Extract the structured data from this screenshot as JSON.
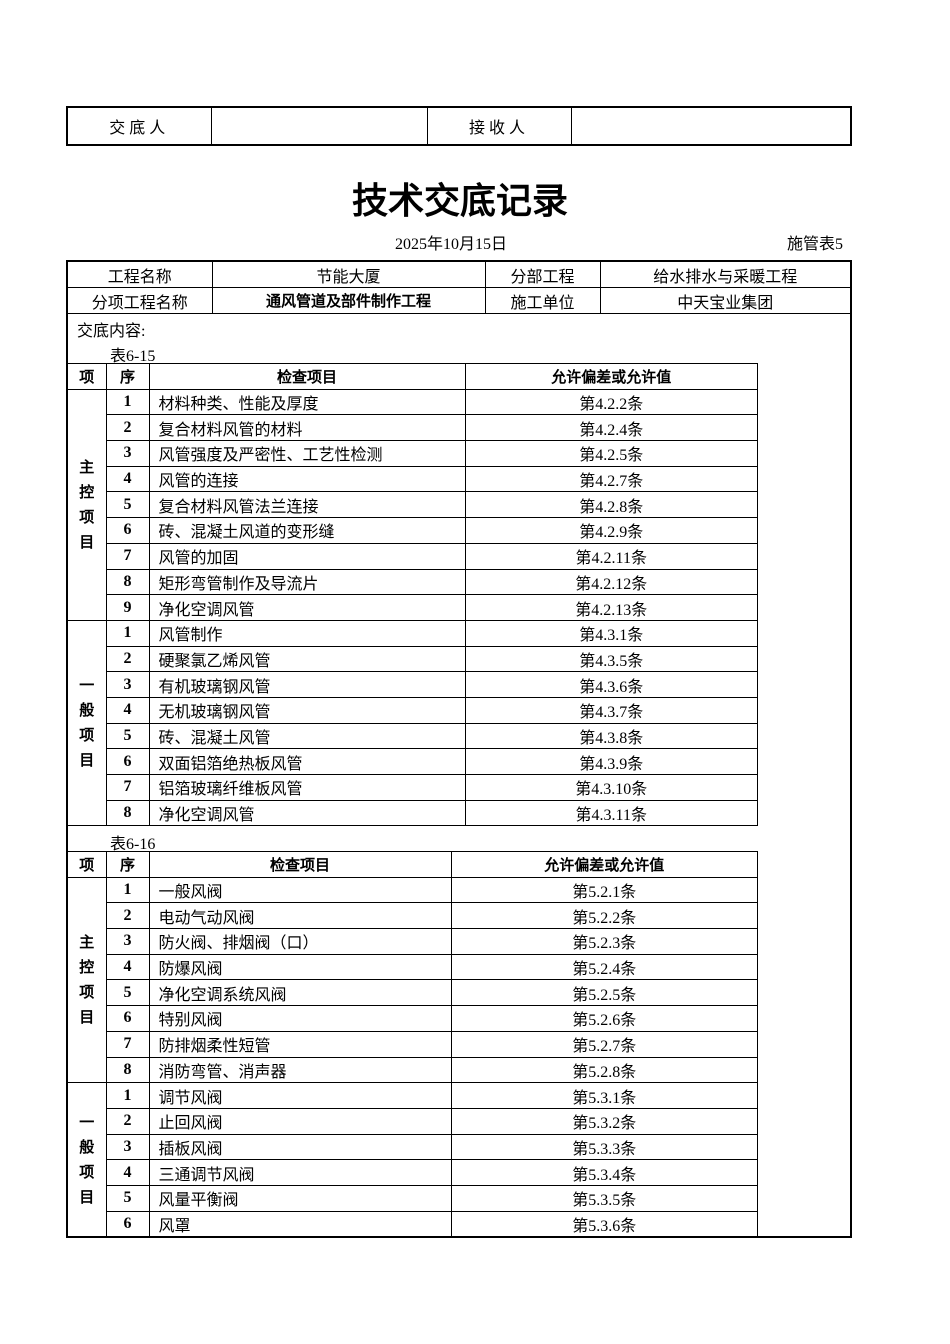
{
  "signoff": {
    "discloser_label": "交底人",
    "discloser_value": "",
    "receiver_label": "接收人",
    "receiver_value": ""
  },
  "title": "技术交底记录",
  "date": "2025年10月15日",
  "form_no": "施管表5",
  "info": {
    "project_name_label": "工程名称",
    "project_name": "节能大厦",
    "division_label": "分部工程",
    "division": "给水排水与采暖工程",
    "subitem_label": "分项工程名称",
    "subitem": "通风管道及部件制作工程",
    "contractor_label": "施工单位",
    "contractor": "中天宝业集团"
  },
  "content_label": "交底内容:",
  "tables": [
    {
      "caption": "表6-15",
      "headers": [
        "项",
        "序",
        "检查项目",
        "允许偏差或允许值"
      ],
      "groups": [
        {
          "name": "主控项目",
          "rows": [
            [
              "1",
              "材料种类、性能及厚度",
              "第4.2.2条"
            ],
            [
              "2",
              "复合材料风管的材料",
              "第4.2.4条"
            ],
            [
              "3",
              "风管强度及严密性、工艺性检测",
              "第4.2.5条"
            ],
            [
              "4",
              "风管的连接",
              "第4.2.7条"
            ],
            [
              "5",
              "复合材料风管法兰连接",
              "第4.2.8条"
            ],
            [
              "6",
              "砖、混凝土风道的变形缝",
              "第4.2.9条"
            ],
            [
              "7",
              "风管的加固",
              "第4.2.11条"
            ],
            [
              "8",
              "矩形弯管制作及导流片",
              "第4.2.12条"
            ],
            [
              "9",
              "净化空调风管",
              "第4.2.13条"
            ]
          ]
        },
        {
          "name": "一般项目",
          "rows": [
            [
              "1",
              "风管制作",
              "第4.3.1条"
            ],
            [
              "2",
              "硬聚氯乙烯风管",
              "第4.3.5条"
            ],
            [
              "3",
              "有机玻璃钢风管",
              "第4.3.6条"
            ],
            [
              "4",
              "无机玻璃钢风管",
              "第4.3.7条"
            ],
            [
              "5",
              "砖、混凝土风管",
              "第4.3.8条"
            ],
            [
              "6",
              "双面铝箔绝热板风管",
              "第4.3.9条"
            ],
            [
              "7",
              "铝箔玻璃纤维板风管",
              "第4.3.10条"
            ],
            [
              "8",
              "净化空调风管",
              "第4.3.11条"
            ]
          ]
        }
      ]
    },
    {
      "caption": "表6-16",
      "headers": [
        "项",
        "序",
        "检查项目",
        "允许偏差或允许值"
      ],
      "groups": [
        {
          "name": "主控项目",
          "rows": [
            [
              "1",
              "一般风阀",
              "第5.2.1条"
            ],
            [
              "2",
              "电动气动风阀",
              "第5.2.2条"
            ],
            [
              "3",
              "防火阀、排烟阀（口）",
              "第5.2.3条"
            ],
            [
              "4",
              "防爆风阀",
              "第5.2.4条"
            ],
            [
              "5",
              "净化空调系统风阀",
              "第5.2.5条"
            ],
            [
              "6",
              "特别风阀",
              "第5.2.6条"
            ],
            [
              "7",
              "防排烟柔性短管",
              "第5.2.7条"
            ],
            [
              "8",
              "消防弯管、消声器",
              "第5.2.8条"
            ]
          ]
        },
        {
          "name": "一般项目",
          "rows": [
            [
              "1",
              "调节风阀",
              "第5.3.1条"
            ],
            [
              "2",
              "止回风阀",
              "第5.3.2条"
            ],
            [
              "3",
              "插板风阀",
              "第5.3.3条"
            ],
            [
              "4",
              "三通调节风阀",
              "第5.3.4条"
            ],
            [
              "5",
              "风量平衡阀",
              "第5.3.5条"
            ],
            [
              "6",
              "风罩",
              "第5.3.6条"
            ]
          ]
        }
      ]
    }
  ]
}
